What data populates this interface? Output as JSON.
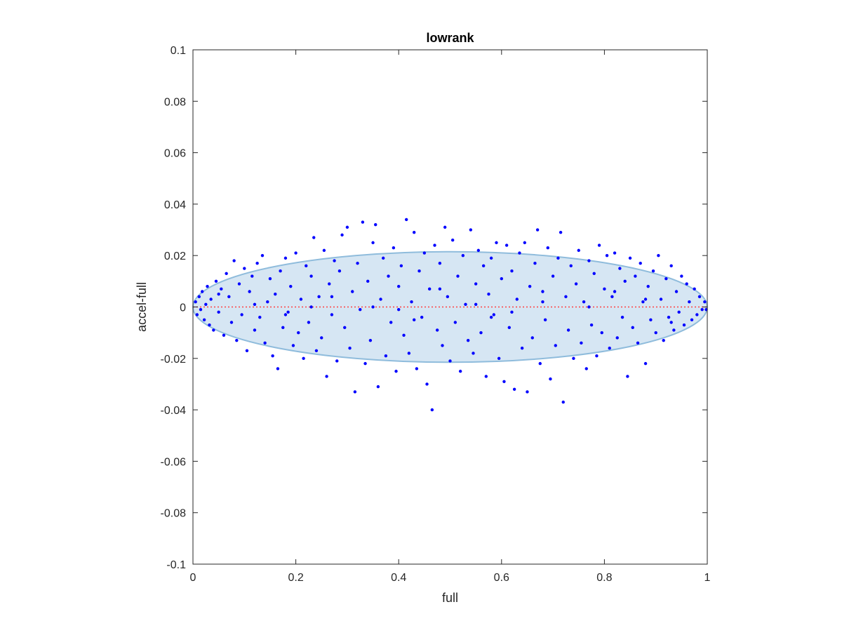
{
  "chart_data": {
    "type": "scatter",
    "title": "lowrank",
    "xlabel": "full",
    "ylabel": "accel-full",
    "xlim": [
      0,
      1
    ],
    "ylim": [
      -0.1,
      0.1
    ],
    "x_ticks": [
      "0",
      "0.2",
      "0.4",
      "0.6",
      "0.8",
      "1"
    ],
    "x_tick_values": [
      0,
      0.2,
      0.4,
      0.6,
      0.8,
      1
    ],
    "y_ticks": [
      "-0.1",
      "-0.08",
      "-0.06",
      "-0.04",
      "-0.02",
      "0",
      "0.02",
      "0.04",
      "0.06",
      "0.08",
      "0.1"
    ],
    "y_tick_values": [
      -0.1,
      -0.08,
      -0.06,
      -0.04,
      -0.02,
      0,
      0.02,
      0.04,
      0.06,
      0.08,
      0.1
    ],
    "grid": false,
    "box": true,
    "point_color": "#0000ff",
    "ellipse_fill": "#d6e6f3",
    "ellipse_edge": "#8fbcdc",
    "reference_line_color": "#ff4040",
    "ellipse": {
      "center_x": 0.5,
      "center_y": 0,
      "semi_x": 0.5,
      "semi_y": 0.0215
    },
    "reference_line": {
      "y": 0
    },
    "points": [
      [
        0.005,
        0.002
      ],
      [
        0.008,
        -0.003
      ],
      [
        0.012,
        0.004
      ],
      [
        0.015,
        -0.001
      ],
      [
        0.018,
        0.006
      ],
      [
        0.022,
        -0.005
      ],
      [
        0.025,
        0.001
      ],
      [
        0.028,
        0.008
      ],
      [
        0.032,
        -0.007
      ],
      [
        0.035,
        0.003
      ],
      [
        0.04,
        -0.009
      ],
      [
        0.045,
        0.01
      ],
      [
        0.05,
        -0.002
      ],
      [
        0.055,
        0.007
      ],
      [
        0.06,
        -0.011
      ],
      [
        0.065,
        0.013
      ],
      [
        0.07,
        0.004
      ],
      [
        0.075,
        -0.006
      ],
      [
        0.08,
        0.018
      ],
      [
        0.085,
        -0.013
      ],
      [
        0.09,
        0.009
      ],
      [
        0.095,
        -0.003
      ],
      [
        0.1,
        0.015
      ],
      [
        0.105,
        -0.017
      ],
      [
        0.11,
        0.006
      ],
      [
        0.115,
        0.012
      ],
      [
        0.12,
        -0.009
      ],
      [
        0.125,
        0.017
      ],
      [
        0.13,
        -0.004
      ],
      [
        0.135,
        0.02
      ],
      [
        0.14,
        -0.014
      ],
      [
        0.145,
        0.002
      ],
      [
        0.15,
        0.011
      ],
      [
        0.155,
        -0.019
      ],
      [
        0.16,
        0.005
      ],
      [
        0.165,
        -0.024
      ],
      [
        0.17,
        0.014
      ],
      [
        0.175,
        -0.008
      ],
      [
        0.18,
        0.019
      ],
      [
        0.185,
        -0.002
      ],
      [
        0.19,
        0.008
      ],
      [
        0.195,
        -0.015
      ],
      [
        0.2,
        0.021
      ],
      [
        0.205,
        -0.01
      ],
      [
        0.21,
        0.003
      ],
      [
        0.215,
        -0.02
      ],
      [
        0.22,
        0.016
      ],
      [
        0.225,
        -0.006
      ],
      [
        0.23,
        0.012
      ],
      [
        0.235,
        0.027
      ],
      [
        0.24,
        -0.017
      ],
      [
        0.245,
        0.004
      ],
      [
        0.25,
        -0.012
      ],
      [
        0.255,
        0.022
      ],
      [
        0.26,
        -0.027
      ],
      [
        0.265,
        0.009
      ],
      [
        0.27,
        -0.003
      ],
      [
        0.275,
        0.018
      ],
      [
        0.28,
        -0.021
      ],
      [
        0.285,
        0.014
      ],
      [
        0.29,
        0.028
      ],
      [
        0.295,
        -0.008
      ],
      [
        0.3,
        0.031
      ],
      [
        0.305,
        -0.016
      ],
      [
        0.31,
        0.006
      ],
      [
        0.315,
        -0.033
      ],
      [
        0.32,
        0.017
      ],
      [
        0.325,
        -0.001
      ],
      [
        0.33,
        0.033
      ],
      [
        0.335,
        -0.022
      ],
      [
        0.34,
        0.01
      ],
      [
        0.345,
        -0.013
      ],
      [
        0.35,
        0.025
      ],
      [
        0.355,
        0.032
      ],
      [
        0.36,
        -0.031
      ],
      [
        0.365,
        0.003
      ],
      [
        0.37,
        0.019
      ],
      [
        0.375,
        -0.019
      ],
      [
        0.38,
        0.012
      ],
      [
        0.385,
        -0.006
      ],
      [
        0.39,
        0.023
      ],
      [
        0.395,
        -0.025
      ],
      [
        0.4,
        0.008
      ],
      [
        0.405,
        0.016
      ],
      [
        0.41,
        -0.011
      ],
      [
        0.415,
        0.034
      ],
      [
        0.42,
        -0.018
      ],
      [
        0.425,
        0.002
      ],
      [
        0.43,
        0.029
      ],
      [
        0.435,
        -0.024
      ],
      [
        0.44,
        0.014
      ],
      [
        0.445,
        -0.004
      ],
      [
        0.45,
        0.021
      ],
      [
        0.455,
        -0.03
      ],
      [
        0.46,
        0.007
      ],
      [
        0.465,
        -0.04
      ],
      [
        0.47,
        0.024
      ],
      [
        0.475,
        -0.009
      ],
      [
        0.48,
        0.017
      ],
      [
        0.485,
        -0.015
      ],
      [
        0.49,
        0.031
      ],
      [
        0.495,
        0.004
      ],
      [
        0.5,
        -0.021
      ],
      [
        0.505,
        0.026
      ],
      [
        0.51,
        -0.006
      ],
      [
        0.515,
        0.012
      ],
      [
        0.52,
        -0.025
      ],
      [
        0.525,
        0.02
      ],
      [
        0.53,
        0.001
      ],
      [
        0.535,
        -0.013
      ],
      [
        0.54,
        0.03
      ],
      [
        0.545,
        -0.018
      ],
      [
        0.55,
        0.009
      ],
      [
        0.555,
        0.022
      ],
      [
        0.56,
        -0.01
      ],
      [
        0.565,
        0.016
      ],
      [
        0.57,
        -0.027
      ],
      [
        0.575,
        0.005
      ],
      [
        0.58,
        0.019
      ],
      [
        0.585,
        -0.003
      ],
      [
        0.59,
        0.025
      ],
      [
        0.595,
        -0.02
      ],
      [
        0.6,
        0.011
      ],
      [
        0.605,
        -0.029
      ],
      [
        0.61,
        0.024
      ],
      [
        0.615,
        -0.008
      ],
      [
        0.62,
        0.014
      ],
      [
        0.625,
        -0.032
      ],
      [
        0.63,
        0.003
      ],
      [
        0.635,
        0.021
      ],
      [
        0.64,
        -0.016
      ],
      [
        0.645,
        0.025
      ],
      [
        0.65,
        -0.033
      ],
      [
        0.655,
        0.008
      ],
      [
        0.66,
        -0.012
      ],
      [
        0.665,
        0.017
      ],
      [
        0.67,
        0.03
      ],
      [
        0.675,
        -0.022
      ],
      [
        0.68,
        0.006
      ],
      [
        0.685,
        -0.005
      ],
      [
        0.69,
        0.023
      ],
      [
        0.695,
        -0.028
      ],
      [
        0.7,
        0.012
      ],
      [
        0.705,
        -0.015
      ],
      [
        0.71,
        0.019
      ],
      [
        0.715,
        0.029
      ],
      [
        0.72,
        -0.037
      ],
      [
        0.725,
        0.004
      ],
      [
        0.73,
        -0.009
      ],
      [
        0.735,
        0.016
      ],
      [
        0.74,
        -0.02
      ],
      [
        0.745,
        0.009
      ],
      [
        0.75,
        0.022
      ],
      [
        0.755,
        -0.014
      ],
      [
        0.76,
        0.002
      ],
      [
        0.765,
        -0.024
      ],
      [
        0.77,
        0.018
      ],
      [
        0.775,
        -0.007
      ],
      [
        0.78,
        0.013
      ],
      [
        0.785,
        -0.019
      ],
      [
        0.79,
        0.024
      ],
      [
        0.795,
        -0.01
      ],
      [
        0.8,
        0.007
      ],
      [
        0.805,
        0.02
      ],
      [
        0.81,
        -0.016
      ],
      [
        0.815,
        0.004
      ],
      [
        0.82,
        0.021
      ],
      [
        0.825,
        -0.012
      ],
      [
        0.83,
        0.015
      ],
      [
        0.835,
        -0.004
      ],
      [
        0.84,
        0.01
      ],
      [
        0.845,
        -0.027
      ],
      [
        0.85,
        0.019
      ],
      [
        0.855,
        -0.008
      ],
      [
        0.86,
        0.012
      ],
      [
        0.865,
        -0.014
      ],
      [
        0.87,
        0.017
      ],
      [
        0.875,
        0.002
      ],
      [
        0.88,
        -0.022
      ],
      [
        0.885,
        0.008
      ],
      [
        0.89,
        -0.005
      ],
      [
        0.895,
        0.014
      ],
      [
        0.9,
        -0.01
      ],
      [
        0.905,
        0.02
      ],
      [
        0.91,
        0.003
      ],
      [
        0.915,
        -0.013
      ],
      [
        0.92,
        0.011
      ],
      [
        0.925,
        -0.004
      ],
      [
        0.93,
        0.016
      ],
      [
        0.935,
        -0.009
      ],
      [
        0.94,
        0.006
      ],
      [
        0.945,
        -0.002
      ],
      [
        0.95,
        0.012
      ],
      [
        0.955,
        -0.007
      ],
      [
        0.96,
        0.009
      ],
      [
        0.965,
        0.002
      ],
      [
        0.97,
        -0.005
      ],
      [
        0.975,
        0.007
      ],
      [
        0.98,
        -0.003
      ],
      [
        0.985,
        0.004
      ],
      [
        0.99,
        -0.001
      ],
      [
        0.995,
        0.002
      ],
      [
        0.998,
        -0.001
      ],
      [
        0.35,
        0.0
      ],
      [
        0.55,
        0.001
      ],
      [
        0.62,
        -0.002
      ],
      [
        0.27,
        0.004
      ],
      [
        0.43,
        -0.005
      ],
      [
        0.77,
        0.0
      ],
      [
        0.12,
        0.001
      ],
      [
        0.88,
        0.003
      ],
      [
        0.05,
        0.005
      ],
      [
        0.93,
        -0.006
      ],
      [
        0.18,
        -0.003
      ],
      [
        0.68,
        0.002
      ],
      [
        0.4,
        -0.001
      ],
      [
        0.58,
        -0.004
      ],
      [
        0.82,
        0.006
      ],
      [
        0.23,
        0.0
      ],
      [
        0.48,
        0.007
      ]
    ]
  }
}
